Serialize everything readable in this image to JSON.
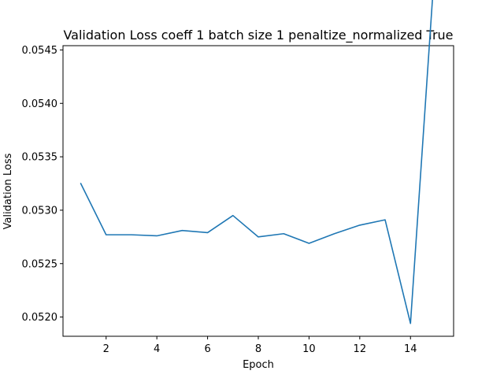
{
  "chart_data": {
    "type": "line",
    "title": "Validation Loss coeff 1 batch size 1 penaltize_normalized True",
    "xlabel": "Epoch",
    "ylabel": "Validation Loss",
    "xlim": [
      0.3,
      15.7
    ],
    "ylim": [
      0.05182,
      0.05454
    ],
    "xticks": [
      2,
      4,
      6,
      8,
      10,
      12,
      14
    ],
    "xtick_labels": [
      "2",
      "4",
      "6",
      "8",
      "10",
      "12",
      "14"
    ],
    "yticks": [
      0.052,
      0.0525,
      0.053,
      0.0535,
      0.054,
      0.0545
    ],
    "ytick_labels": [
      "0.0520",
      "0.0525",
      "0.0530",
      "0.0535",
      "0.0540",
      "0.0545"
    ],
    "grid": false,
    "series": [
      {
        "color": "#1f77b4",
        "x": [
          1,
          2,
          3,
          4,
          5,
          6,
          7,
          8,
          9,
          10,
          11,
          12,
          13,
          14,
          15
        ],
        "y": [
          0.05325,
          0.05277,
          0.05277,
          0.05276,
          0.05281,
          0.05279,
          0.05295,
          0.05275,
          0.05278,
          0.05269,
          0.05278,
          0.05286,
          0.05291,
          0.05194,
          0.05544
        ]
      }
    ]
  }
}
